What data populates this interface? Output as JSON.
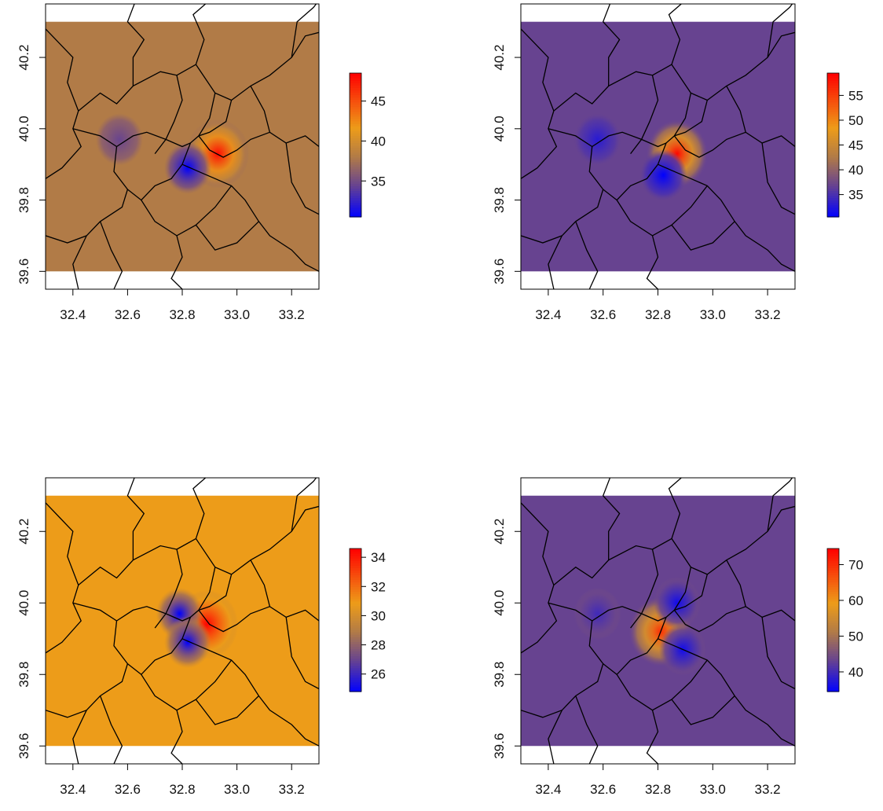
{
  "chart_data": [
    {
      "type": "heatmap",
      "panel": "top-left",
      "title": "",
      "xlabel": "",
      "ylabel": "",
      "xlim": [
        32.3,
        33.3
      ],
      "ylim": [
        39.55,
        40.35
      ],
      "xticks": [
        32.4,
        32.6,
        32.8,
        33.0,
        33.2
      ],
      "yticks": [
        39.6,
        39.8,
        40.0,
        40.2
      ],
      "raster_extent": {
        "lon": [
          32.3,
          33.3
        ],
        "lat": [
          39.6,
          40.3
        ]
      },
      "background_value": 36.5,
      "background_color": "#b17b47",
      "anomalies": [
        {
          "lon": 32.93,
          "lat": 39.93,
          "value": 48,
          "kind": "high"
        },
        {
          "lon": 32.82,
          "lat": 39.89,
          "value": 30.5,
          "kind": "low"
        },
        {
          "lon": 32.57,
          "lat": 39.97,
          "value": 34.5,
          "kind": "low"
        }
      ],
      "colorbar": {
        "min": 30.5,
        "max": 48.5,
        "ticks": [
          35,
          40,
          45
        ]
      }
    },
    {
      "type": "heatmap",
      "panel": "top-right",
      "title": "",
      "xlabel": "",
      "ylabel": "",
      "xlim": [
        32.3,
        33.3
      ],
      "ylim": [
        39.55,
        40.35
      ],
      "xticks": [
        32.4,
        32.6,
        32.8,
        33.0,
        33.2
      ],
      "yticks": [
        39.6,
        39.8,
        40.0,
        40.2
      ],
      "raster_extent": {
        "lon": [
          32.3,
          33.3
        ],
        "lat": [
          39.6,
          40.3
        ]
      },
      "background_value": 36.5,
      "background_color": "#674390",
      "anomalies": [
        {
          "lon": 32.87,
          "lat": 39.93,
          "value": 59,
          "kind": "high"
        },
        {
          "lon": 32.82,
          "lat": 39.87,
          "value": 30.5,
          "kind": "low"
        },
        {
          "lon": 32.58,
          "lat": 39.97,
          "value": 33,
          "kind": "low"
        }
      ],
      "colorbar": {
        "min": 30.5,
        "max": 59.5,
        "ticks": [
          35,
          40,
          45,
          50,
          55
        ]
      }
    },
    {
      "type": "heatmap",
      "panel": "bottom-left",
      "title": "",
      "xlabel": "",
      "ylabel": "",
      "xlim": [
        32.3,
        33.3
      ],
      "ylim": [
        39.55,
        40.35
      ],
      "xticks": [
        32.4,
        32.6,
        32.8,
        33.0,
        33.2
      ],
      "yticks": [
        39.6,
        39.8,
        40.0,
        40.2
      ],
      "raster_extent": {
        "lon": [
          32.3,
          33.3
        ],
        "lat": [
          39.6,
          40.3
        ]
      },
      "background_value": 29.6,
      "background_color": "#ed9c19",
      "anomalies": [
        {
          "lon": 32.89,
          "lat": 39.94,
          "value": 34.5,
          "kind": "high"
        },
        {
          "lon": 32.79,
          "lat": 39.97,
          "value": 24.8,
          "kind": "low"
        },
        {
          "lon": 32.82,
          "lat": 39.89,
          "value": 24.8,
          "kind": "low"
        }
      ],
      "colorbar": {
        "min": 24.8,
        "max": 34.6,
        "ticks": [
          26,
          28,
          30,
          32,
          34
        ]
      }
    },
    {
      "type": "heatmap",
      "panel": "bottom-right",
      "title": "",
      "xlabel": "",
      "ylabel": "",
      "xlim": [
        32.3,
        33.3
      ],
      "ylim": [
        39.55,
        40.35
      ],
      "xticks": [
        32.4,
        32.6,
        32.8,
        33.0,
        33.2
      ],
      "yticks": [
        39.6,
        39.8,
        40.0,
        40.2
      ],
      "raster_extent": {
        "lon": [
          32.3,
          33.3
        ],
        "lat": [
          39.6,
          40.3
        ]
      },
      "background_value": 45,
      "background_color": "#674390",
      "anomalies": [
        {
          "lon": 32.81,
          "lat": 39.92,
          "value": 70,
          "kind": "high"
        },
        {
          "lon": 32.87,
          "lat": 40.0,
          "value": 36,
          "kind": "low"
        },
        {
          "lon": 32.89,
          "lat": 39.87,
          "value": 36,
          "kind": "low"
        },
        {
          "lon": 32.58,
          "lat": 39.97,
          "value": 40,
          "kind": "low"
        }
      ],
      "colorbar": {
        "min": 34.5,
        "max": 74.5,
        "ticks": [
          40,
          50,
          60,
          70
        ]
      }
    }
  ]
}
